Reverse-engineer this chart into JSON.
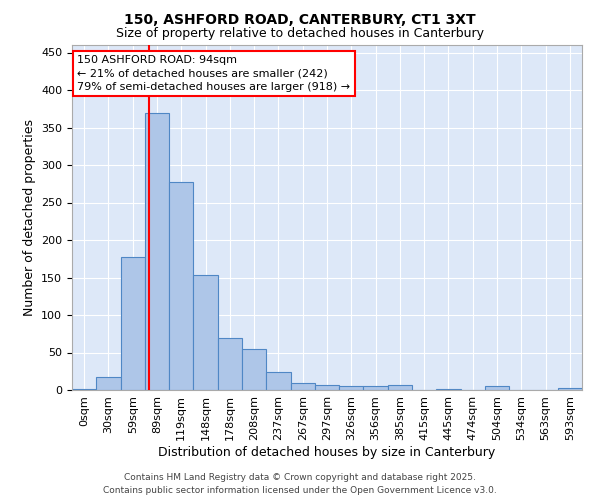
{
  "title1": "150, ASHFORD ROAD, CANTERBURY, CT1 3XT",
  "title2": "Size of property relative to detached houses in Canterbury",
  "xlabel": "Distribution of detached houses by size in Canterbury",
  "ylabel": "Number of detached properties",
  "bar_labels": [
    "0sqm",
    "30sqm",
    "59sqm",
    "89sqm",
    "119sqm",
    "148sqm",
    "178sqm",
    "208sqm",
    "237sqm",
    "267sqm",
    "297sqm",
    "326sqm",
    "356sqm",
    "385sqm",
    "415sqm",
    "445sqm",
    "474sqm",
    "504sqm",
    "534sqm",
    "563sqm",
    "593sqm"
  ],
  "bar_values": [
    2,
    17,
    178,
    370,
    278,
    153,
    70,
    55,
    24,
    9,
    7,
    6,
    5,
    7,
    0,
    2,
    0,
    5,
    0,
    0,
    3
  ],
  "bar_width": 1.0,
  "bar_color": "#aec6e8",
  "bar_edge_color": "#4f87c5",
  "bar_edge_width": 0.8,
  "bg_color": "#dde8f8",
  "grid_color": "#ffffff",
  "red_line_x": 3.17,
  "annotation_box_text": "150 ASHFORD ROAD: 94sqm\n← 21% of detached houses are smaller (242)\n79% of semi-detached houses are larger (918) →",
  "footer_text": "Contains HM Land Registry data © Crown copyright and database right 2025.\nContains public sector information licensed under the Open Government Licence v3.0.",
  "ylim": [
    0,
    460
  ],
  "yticks": [
    0,
    50,
    100,
    150,
    200,
    250,
    300,
    350,
    400,
    450
  ],
  "title1_fontsize": 10,
  "title2_fontsize": 9,
  "xlabel_fontsize": 9,
  "ylabel_fontsize": 9,
  "tick_fontsize": 8,
  "annot_fontsize": 8,
  "footer_fontsize": 6.5
}
